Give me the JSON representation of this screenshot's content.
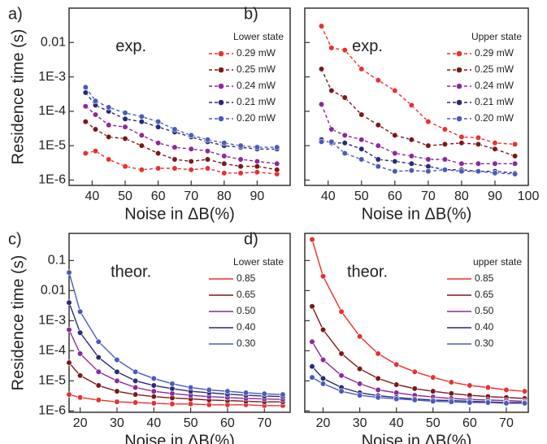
{
  "chart_data": [
    {
      "type": "line",
      "panel_label": "a)",
      "annotation": "exp.",
      "legend_title": "Lower state",
      "legend": "upper right",
      "x_label": "Noise in ΔB(%)",
      "y_label": "Residence time (s)",
      "log_y": true,
      "linestyle": "dashed",
      "markers": true,
      "x": [
        38,
        41,
        45,
        50,
        55,
        60,
        65,
        70,
        75,
        80,
        85,
        90,
        96
      ],
      "xlim": [
        33,
        100
      ],
      "xticks": [
        40,
        50,
        60,
        70,
        80,
        90
      ],
      "ylim": [
        7e-07,
        0.1
      ],
      "yticks": [
        {
          "value": 1e-06,
          "label": "1E-6"
        },
        {
          "value": 1e-05,
          "label": "1E-5"
        },
        {
          "value": 0.0001,
          "label": "1E-4"
        },
        {
          "value": 0.001,
          "label": "1E-3"
        },
        0.01
      ],
      "series": [
        {
          "name": "0.29 mW",
          "color": "#e8312f",
          "values": [
            6e-06,
            7e-06,
            4e-06,
            2.5e-06,
            2e-06,
            2.2e-06,
            2.2e-06,
            2e-06,
            2.2e-06,
            1.6e-06,
            1.6e-06,
            1.7e-06,
            1.5e-06
          ]
        },
        {
          "name": "0.25 mW",
          "color": "#7a1a1a",
          "values": [
            5e-05,
            3e-05,
            1.8e-05,
            1.6e-05,
            1e-05,
            6e-06,
            4e-06,
            3.5e-06,
            4e-06,
            3e-06,
            2.5e-06,
            2.5e-06,
            2e-06
          ]
        },
        {
          "name": "0.24 mW",
          "color": "#8b2a9b",
          "values": [
            0.00014,
            8e-05,
            4e-05,
            3.5e-05,
            2e-05,
            1.2e-05,
            9e-06,
            8e-06,
            7e-06,
            5e-06,
            4e-06,
            3.5e-06,
            3e-06
          ]
        },
        {
          "name": "0.21 mW",
          "color": "#2a2a7a",
          "values": [
            0.00035,
            0.00015,
            0.0001,
            6e-05,
            5e-05,
            3.5e-05,
            2.5e-05,
            1.8e-05,
            1.3e-05,
            1e-05,
            9e-06,
            8e-06,
            8e-06
          ]
        },
        {
          "name": "0.20 mW",
          "color": "#4a5bbd",
          "values": [
            0.0005,
            0.0002,
            0.00013,
            9e-05,
            7e-05,
            5e-05,
            3e-05,
            2e-05,
            1.5e-05,
            1.2e-05,
            1e-05,
            9e-06,
            9e-06
          ]
        }
      ]
    },
    {
      "type": "line",
      "panel_label": "b)",
      "annotation": "exp.",
      "legend_title": "Upper state",
      "legend": "upper right",
      "x_label": "Noise in ΔB(%)",
      "log_y": true,
      "linestyle": "dashed",
      "markers": true,
      "show_ytick_labels": false,
      "x": [
        38,
        41,
        45,
        50,
        55,
        60,
        65,
        70,
        75,
        80,
        85,
        90,
        96
      ],
      "xlim": [
        33,
        100
      ],
      "xticks": [
        40,
        50,
        60,
        70,
        80,
        90,
        100
      ],
      "ylim": [
        7e-07,
        0.1
      ],
      "yticks": [
        1e-06,
        1e-05,
        0.0001,
        0.001,
        0.01
      ],
      "series": [
        {
          "name": "0.29 mW",
          "color": "#e8312f",
          "values": [
            0.03,
            0.007,
            0.006,
            0.0017,
            0.0008,
            0.0004,
            0.00015,
            5e-05,
            3e-05,
            1.8e-05,
            1.7e-05,
            1.2e-05,
            1.1e-05
          ]
        },
        {
          "name": "0.25 mW",
          "color": "#7a1a1a",
          "values": [
            0.0017,
            0.0004,
            0.00025,
            8e-05,
            4e-05,
            2e-05,
            1.5e-05,
            1e-05,
            1.1e-05,
            1.2e-05,
            1.1e-05,
            8e-06,
            5e-06
          ]
        },
        {
          "name": "0.24 mW",
          "color": "#8b2a9b",
          "values": [
            0.00016,
            3e-05,
            2e-05,
            1.5e-05,
            1e-05,
            6e-06,
            5e-06,
            4e-06,
            4e-06,
            3e-06,
            3e-06,
            3e-06,
            3e-06
          ]
        },
        {
          "name": "0.21 mW",
          "color": "#2a2a7a",
          "values": [
            1.5e-05,
            1.2e-05,
            1.2e-05,
            8e-06,
            4e-06,
            3.5e-06,
            3e-06,
            2.5e-06,
            2e-06,
            2e-06,
            1.8e-06,
            1.8e-06,
            1.6e-06
          ]
        },
        {
          "name": "0.20 mW",
          "color": "#4a5bbd",
          "values": [
            1.3e-05,
            1.3e-05,
            6e-06,
            4e-06,
            2.5e-06,
            1.8e-06,
            1.9e-06,
            1.8e-06,
            2e-06,
            1.8e-06,
            1.8e-06,
            1.6e-06,
            1.5e-06
          ]
        }
      ]
    },
    {
      "type": "line",
      "panel_label": "c)",
      "annotation": "theor.",
      "legend_title": "Lower state",
      "legend": "upper right",
      "x_label": "Noise in ΔB(%)",
      "y_label": "Residence time (s)",
      "log_y": true,
      "linestyle": "solid",
      "markers": true,
      "x": [
        17,
        20,
        25,
        30,
        35,
        40,
        45,
        50,
        55,
        60,
        65,
        70,
        75
      ],
      "xlim": [
        17,
        77
      ],
      "xticks": [
        20,
        30,
        40,
        50,
        60,
        70
      ],
      "ylim": [
        9e-07,
        0.8
      ],
      "yticks": [
        {
          "value": 1e-06,
          "label": "1E-6"
        },
        {
          "value": 1e-05,
          "label": "1E-5"
        },
        {
          "value": 0.0001,
          "label": "1E-4"
        },
        {
          "value": 0.001,
          "label": "1E-3"
        },
        0.01,
        0.1
      ],
      "series": [
        {
          "name": "0.85",
          "color": "#e8312f",
          "values": [
            3.5e-06,
            2.8e-06,
            2.3e-06,
            2e-06,
            1.9e-06,
            1.8e-06,
            1.7e-06,
            1.7e-06,
            1.6e-06,
            1.6e-06,
            1.6e-06,
            1.5e-06,
            1.5e-06
          ]
        },
        {
          "name": "0.65",
          "color": "#7a1a1a",
          "values": [
            4e-05,
            1.5e-05,
            7e-06,
            4.5e-06,
            3.5e-06,
            3e-06,
            2.7e-06,
            2.5e-06,
            2.3e-06,
            2.2e-06,
            2.1e-06,
            2e-06,
            2e-06
          ]
        },
        {
          "name": "0.50",
          "color": "#8b2a9b",
          "values": [
            0.0005,
            8e-05,
            2e-05,
            1e-05,
            6e-06,
            4.5e-06,
            3.8e-06,
            3.3e-06,
            3e-06,
            2.8e-06,
            2.6e-06,
            2.5e-06,
            2.4e-06
          ]
        },
        {
          "name": "0.40",
          "color": "#2a2a7a",
          "values": [
            0.004,
            0.0004,
            6e-05,
            2e-05,
            1e-05,
            7e-06,
            5.5e-06,
            4.5e-06,
            4e-06,
            3.6e-06,
            3.3e-06,
            3.1e-06,
            3e-06
          ]
        },
        {
          "name": "0.30",
          "color": "#4a5bbd",
          "values": [
            0.04,
            0.002,
            0.0002,
            5e-05,
            2e-05,
            1.2e-05,
            8e-06,
            6e-06,
            5e-06,
            4.5e-06,
            4e-06,
            3.7e-06,
            3.5e-06
          ]
        }
      ]
    },
    {
      "type": "line",
      "panel_label": "d)",
      "annotation": "theor.",
      "legend_title": "upper state",
      "legend": "upper right",
      "x_label": "Noise in ΔB(%)",
      "log_y": true,
      "linestyle": "solid",
      "markers": true,
      "show_ytick_labels": false,
      "x": [
        17,
        20,
        25,
        30,
        35,
        40,
        45,
        50,
        55,
        60,
        65,
        70,
        75
      ],
      "xlim": [
        15,
        76
      ],
      "xticks": [
        20,
        30,
        40,
        50,
        60,
        70
      ],
      "ylim": [
        9e-07,
        0.8
      ],
      "yticks": [
        1e-06,
        1e-05,
        0.0001,
        0.001,
        0.01,
        0.1
      ],
      "series": [
        {
          "name": "0.85",
          "color": "#e8312f",
          "values": [
            0.5,
            0.03,
            0.002,
            0.0003,
            8e-05,
            3.5e-05,
            2e-05,
            1.3e-05,
            9e-06,
            7e-06,
            6e-06,
            5e-06,
            4.5e-06
          ]
        },
        {
          "name": "0.65",
          "color": "#7a1a1a",
          "values": [
            0.003,
            0.0005,
            8e-05,
            2.5e-05,
            1.2e-05,
            7.5e-06,
            5.5e-06,
            4.5e-06,
            3.8e-06,
            3.3e-06,
            3e-06,
            2.8e-06,
            2.6e-06
          ]
        },
        {
          "name": "0.50",
          "color": "#8b2a9b",
          "values": [
            0.0002,
            5e-05,
            1.5e-05,
            8e-06,
            5e-06,
            4e-06,
            3.3e-06,
            2.9e-06,
            2.6e-06,
            2.4e-06,
            2.3e-06,
            2.2e-06,
            2.1e-06
          ]
        },
        {
          "name": "0.40",
          "color": "#2a2a7a",
          "values": [
            3e-05,
            1.2e-05,
            6e-06,
            4e-06,
            3.2e-06,
            2.8e-06,
            2.5e-06,
            2.3e-06,
            2.2e-06,
            2.1e-06,
            2e-06,
            1.9e-06,
            1.9e-06
          ]
        },
        {
          "name": "0.30",
          "color": "#4a5bbd",
          "values": [
            1.3e-05,
            8e-06,
            4.5e-06,
            3.3e-06,
            2.8e-06,
            2.5e-06,
            2.3e-06,
            2.1e-06,
            2e-06,
            1.9e-06,
            1.9e-06,
            1.8e-06,
            1.8e-06
          ]
        }
      ]
    }
  ]
}
